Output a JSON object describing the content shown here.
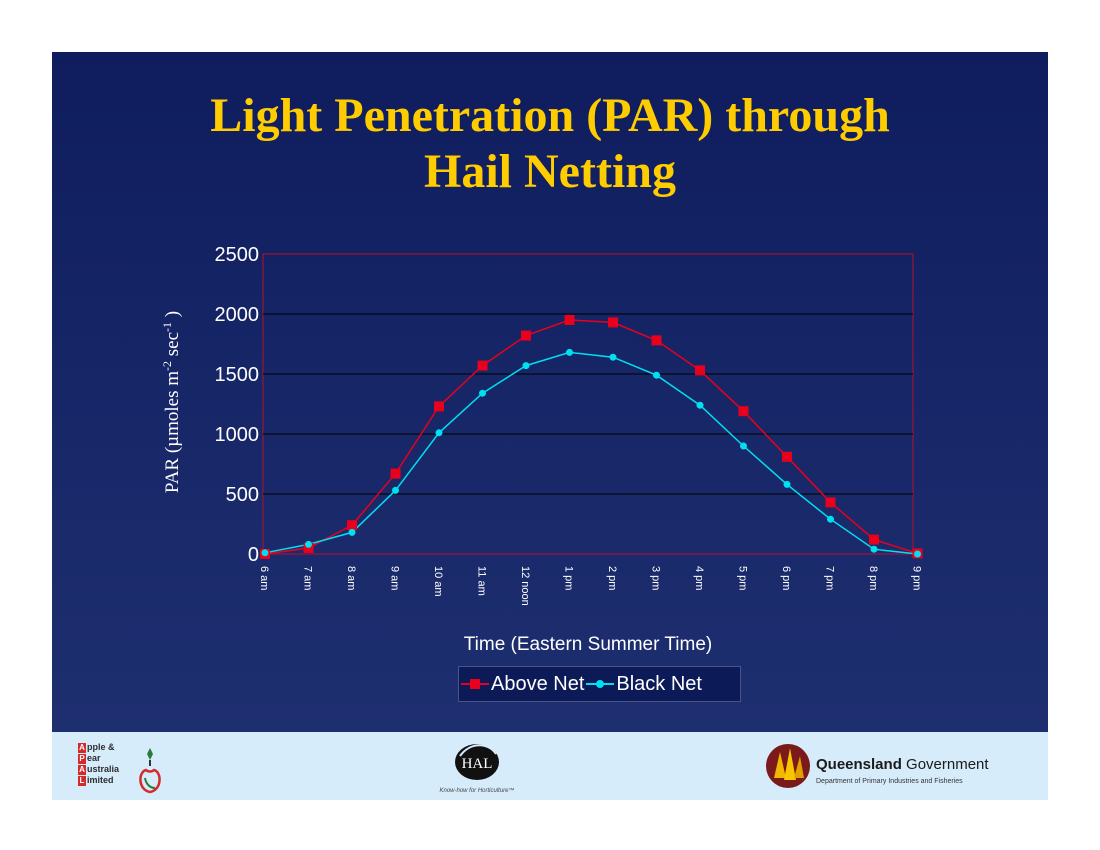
{
  "slide": {
    "title_line1": "Light Penetration (PAR) through",
    "title_line2": "Hail Netting",
    "background": "#0f1d5e",
    "title_color": "#ffcc00"
  },
  "chart_data": {
    "type": "line",
    "categories": [
      "6 am",
      "7 am",
      "8 am",
      "9 am",
      "10 am",
      "11 am",
      "12 noon",
      "1 pm",
      "2 pm",
      "3 pm",
      "4 pm",
      "5 pm",
      "6 pm",
      "7 pm",
      "8 pm",
      "9 pm"
    ],
    "series": [
      {
        "name": "Above Net",
        "color": "#e8001c",
        "marker": "square",
        "values": [
          0,
          50,
          240,
          670,
          1230,
          1570,
          1820,
          1950,
          1930,
          1780,
          1530,
          1190,
          810,
          430,
          120,
          5
        ]
      },
      {
        "name": "Black Net",
        "color": "#00e0f0",
        "marker": "circle",
        "values": [
          10,
          80,
          180,
          530,
          1010,
          1340,
          1570,
          1680,
          1640,
          1490,
          1240,
          900,
          580,
          290,
          40,
          0
        ]
      }
    ],
    "xlabel": "Time (Eastern Summer Time)",
    "ylabel_main": "PAR (µmoles m",
    "ylabel_sup1": "-2",
    "ylabel_mid": " sec",
    "ylabel_sup2": "-1",
    "ylabel_end": " )",
    "ylim": [
      0,
      2500
    ],
    "yticks": [
      0,
      500,
      1000,
      1500,
      2000,
      2500
    ],
    "grid": true,
    "legend_position": "bottom"
  },
  "footer": {
    "apal_letters": [
      "A",
      "P",
      "A",
      "L"
    ],
    "apal_words": [
      "pple &",
      "ear",
      "ustralia",
      "imited"
    ],
    "hal_logo": "HAL",
    "hal_tagline": "Know-how for Horticulture™",
    "qld_name_bold": "Queensland",
    "qld_name_rest": "Government",
    "qld_dept": "Department of Primary Industries and Fisheries"
  }
}
